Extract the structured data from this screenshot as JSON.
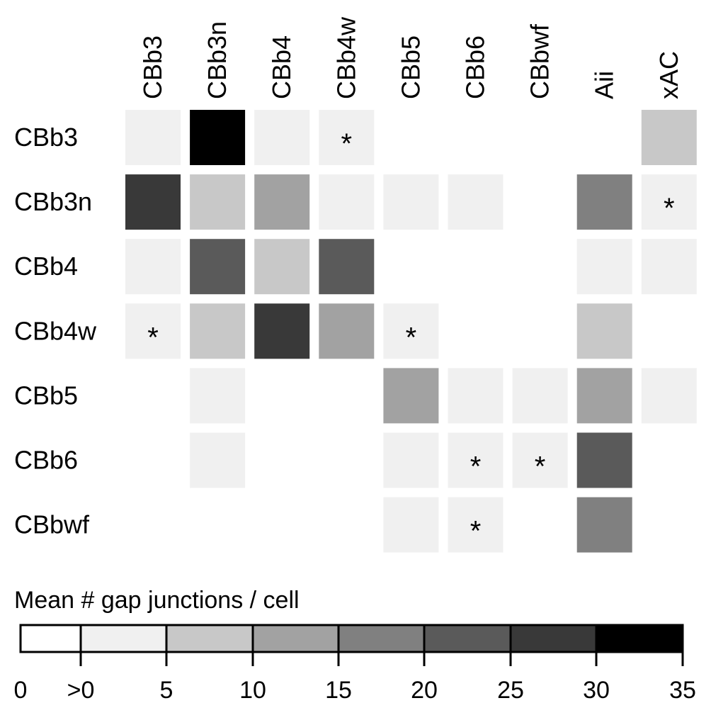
{
  "chart_data": {
    "type": "heatmap",
    "columns": [
      "CBb3",
      "CBb3n",
      "CBb4",
      "CBb4w",
      "CBb5",
      "CBb6",
      "CBbwf",
      "Aii",
      "xAC"
    ],
    "rows": [
      "CBb3",
      "CBb3n",
      "CBb4",
      "CBb4w",
      "CBb5",
      "CBb6",
      "CBbwf"
    ],
    "values": [
      [
        1,
        7,
        1,
        1,
        0,
        0,
        0,
        0,
        2
      ],
      [
        6,
        2,
        3,
        1,
        1,
        1,
        0,
        4,
        1
      ],
      [
        1,
        5,
        2,
        5,
        0,
        0,
        0,
        1,
        1
      ],
      [
        1,
        2,
        6,
        3,
        1,
        0,
        0,
        2,
        0
      ],
      [
        0,
        1,
        0,
        0,
        3,
        1,
        1,
        3,
        1
      ],
      [
        0,
        1,
        0,
        0,
        1,
        1,
        1,
        5,
        0
      ],
      [
        0,
        0,
        0,
        0,
        1,
        1,
        0,
        4,
        0
      ]
    ],
    "value_encoding": "bin index: 0 = 0, 1 = >0-5, 2 = 5-10, 3 = 10-15, 4 = 15-20, 5 = 20-25, 6 = 25-30, 7 = 30-35",
    "asterisks": [
      [
        0,
        3
      ],
      [
        1,
        8
      ],
      [
        3,
        0
      ],
      [
        3,
        4
      ],
      [
        5,
        5
      ],
      [
        5,
        6
      ],
      [
        6,
        5
      ]
    ],
    "colorbar": {
      "title": "Mean # gap junctions / cell",
      "tick_labels": [
        "0",
        ">0",
        "5",
        "10",
        "15",
        "20",
        "25",
        "30",
        "35"
      ],
      "colors": [
        "#ffffff",
        "#f0f0f0",
        "#c8c8c8",
        "#a2a2a2",
        "#808080",
        "#5a5a5a",
        "#393939",
        "#000000"
      ]
    },
    "asterisk_symbol": "*"
  }
}
